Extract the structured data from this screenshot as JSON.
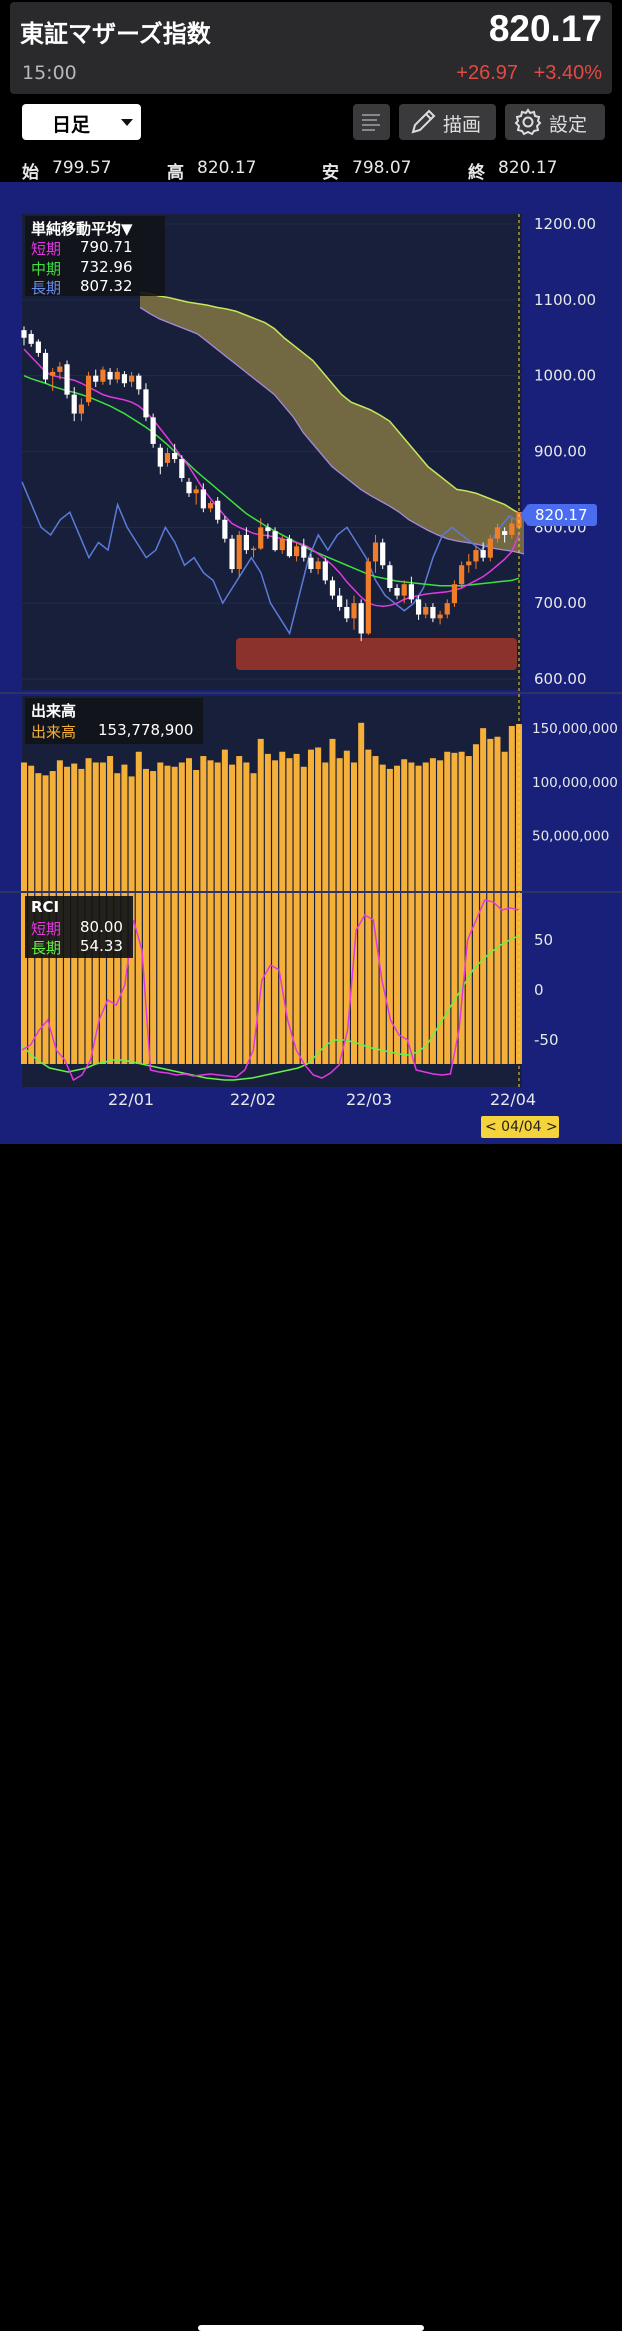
{
  "header": {
    "title": "東証マザーズ指数",
    "time": "15:00",
    "price": "820.17",
    "change": "+26.97",
    "change_pct": "+3.40%"
  },
  "toolbar": {
    "period": "日足",
    "draw_label": "描画",
    "settings_label": "設定"
  },
  "ohlc": {
    "open_label": "始",
    "open": "799.57",
    "high_label": "高",
    "high": "820.17",
    "low_label": "安",
    "low": "798.07",
    "close_label": "終",
    "close": "820.17"
  },
  "colors": {
    "up": "#f07d2a",
    "down": "#ffffff",
    "volume": "#f5b03a",
    "short_ma": "#e239e2",
    "mid_ma": "#3ee03e",
    "long_ma": "#5b7bd8",
    "cloud": "#8a7a45",
    "rci_short": "#e239e2",
    "rci_long": "#6af04a",
    "background": "#18207a",
    "accent": "#4a6df0"
  },
  "price_panel": {
    "legend_title": "単純移動平均▼",
    "short_label": "短期",
    "short_value": "790.71",
    "mid_label": "中期",
    "mid_value": "732.96",
    "long_label": "長期",
    "long_value": "807.32",
    "y_ticks": [
      "1200.00",
      "1100.00",
      "1000.00",
      "900.00",
      "800.00",
      "700.00",
      "600.00"
    ],
    "last_price_tag": "820.17"
  },
  "volume_panel": {
    "legend_title": "出来高",
    "label": "出来高",
    "value": "153,778,900",
    "y_ticks": [
      "150,000,000",
      "100,000,000",
      "50,000,000"
    ]
  },
  "rci_panel": {
    "legend_title": "RCI",
    "short_label": "短期",
    "short_value": "80.00",
    "long_label": "長期",
    "long_value": "54.33",
    "y_ticks": [
      "50",
      "0",
      "-50"
    ]
  },
  "x_axis": {
    "ticks": [
      "22/01",
      "22/02",
      "22/03",
      "22/04"
    ],
    "cursor_date": "< 04/04 >"
  },
  "chart_data": {
    "type": "candlestick",
    "price_ylim": [
      600,
      1200
    ],
    "ohlc": [
      [
        1060,
        1065,
        1040,
        1050
      ],
      [
        1055,
        1060,
        1038,
        1042
      ],
      [
        1045,
        1048,
        1025,
        1030
      ],
      [
        1030,
        1035,
        990,
        995
      ],
      [
        1000,
        1010,
        980,
        1005
      ],
      [
        1005,
        1018,
        995,
        1012
      ],
      [
        1015,
        1020,
        970,
        975
      ],
      [
        975,
        985,
        940,
        950
      ],
      [
        950,
        970,
        940,
        962
      ],
      [
        965,
        1005,
        960,
        1000
      ],
      [
        1000,
        1008,
        985,
        992
      ],
      [
        992,
        1012,
        988,
        1008
      ],
      [
        1005,
        1010,
        988,
        995
      ],
      [
        995,
        1010,
        990,
        1005
      ],
      [
        1002,
        1006,
        985,
        990
      ],
      [
        992,
        1005,
        985,
        1000
      ],
      [
        1000,
        1003,
        975,
        982
      ],
      [
        982,
        990,
        940,
        945
      ],
      [
        945,
        950,
        905,
        910
      ],
      [
        905,
        910,
        870,
        880
      ],
      [
        885,
        905,
        880,
        898
      ],
      [
        898,
        910,
        885,
        890
      ],
      [
        890,
        895,
        860,
        865
      ],
      [
        860,
        865,
        840,
        845
      ],
      [
        845,
        855,
        830,
        850
      ],
      [
        850,
        858,
        820,
        825
      ],
      [
        825,
        835,
        820,
        832
      ],
      [
        835,
        840,
        805,
        810
      ],
      [
        810,
        815,
        780,
        785
      ],
      [
        785,
        790,
        740,
        745
      ],
      [
        745,
        795,
        735,
        790
      ],
      [
        790,
        800,
        765,
        770
      ],
      [
        770,
        775,
        760,
        772
      ],
      [
        772,
        812,
        770,
        800
      ],
      [
        800,
        805,
        785,
        795
      ],
      [
        795,
        800,
        768,
        770
      ],
      [
        770,
        790,
        765,
        785
      ],
      [
        785,
        790,
        760,
        762
      ],
      [
        762,
        780,
        755,
        775
      ],
      [
        775,
        785,
        755,
        760
      ],
      [
        760,
        765,
        740,
        745
      ],
      [
        745,
        760,
        738,
        755
      ],
      [
        755,
        760,
        725,
        730
      ],
      [
        730,
        735,
        705,
        710
      ],
      [
        710,
        720,
        690,
        695
      ],
      [
        695,
        705,
        675,
        680
      ],
      [
        680,
        710,
        665,
        700
      ],
      [
        700,
        705,
        650,
        660
      ],
      [
        660,
        760,
        658,
        755
      ],
      [
        755,
        790,
        740,
        780
      ],
      [
        780,
        785,
        745,
        750
      ],
      [
        750,
        755,
        715,
        720
      ],
      [
        720,
        725,
        705,
        710
      ],
      [
        710,
        730,
        700,
        725
      ],
      [
        725,
        735,
        700,
        705
      ],
      [
        705,
        710,
        678,
        685
      ],
      [
        685,
        700,
        680,
        695
      ],
      [
        695,
        700,
        675,
        680
      ],
      [
        680,
        690,
        672,
        685
      ],
      [
        685,
        705,
        680,
        700
      ],
      [
        700,
        730,
        695,
        725
      ],
      [
        725,
        755,
        720,
        750
      ],
      [
        750,
        765,
        740,
        755
      ],
      [
        755,
        775,
        745,
        770
      ],
      [
        770,
        780,
        755,
        760
      ],
      [
        760,
        790,
        755,
        785
      ],
      [
        785,
        805,
        780,
        800
      ],
      [
        795,
        800,
        780,
        790
      ],
      [
        790,
        812,
        785,
        805
      ],
      [
        799.57,
        820.17,
        798.07,
        820.17
      ]
    ],
    "ma_short": [
      1035,
      1025,
      1015,
      1005,
      1000,
      998,
      996,
      994,
      990,
      985,
      980,
      975,
      972,
      970,
      968,
      965,
      960,
      952,
      942,
      930,
      918,
      905,
      892,
      880,
      865,
      850,
      838,
      826,
      815,
      805,
      800,
      796,
      792,
      790,
      789,
      787,
      785,
      782,
      780,
      777,
      772,
      765,
      758,
      750,
      740,
      728,
      718,
      708,
      700,
      697,
      696,
      697,
      700,
      705,
      708,
      710,
      712,
      713,
      714,
      715,
      717,
      720,
      725,
      730,
      735,
      742,
      750,
      758,
      768,
      790.71
    ],
    "ma_mid": [
      1000,
      996,
      993,
      990,
      986,
      983,
      980,
      978,
      975,
      972,
      968,
      964,
      960,
      955,
      950,
      944,
      938,
      932,
      925,
      917,
      909,
      900,
      892,
      883,
      874,
      866,
      858,
      850,
      842,
      834,
      826,
      818,
      812,
      806,
      800,
      795,
      790,
      785,
      780,
      775,
      770,
      766,
      762,
      758,
      754,
      750,
      746,
      742,
      738,
      735,
      733,
      731,
      729,
      728,
      727,
      726,
      725,
      724,
      723,
      723,
      723,
      723,
      724,
      725,
      726,
      727,
      728,
      729,
      730,
      732.96
    ],
    "ma_long": [
      860,
      830,
      800,
      790,
      810,
      820,
      790,
      760,
      780,
      770,
      830,
      800,
      780,
      760,
      770,
      800,
      780,
      750,
      760,
      740,
      730,
      700,
      720,
      740,
      760,
      740,
      700,
      680,
      660,
      710,
      760,
      790,
      770,
      790,
      800,
      780,
      760,
      730,
      710,
      700,
      690,
      700,
      720,
      760,
      790,
      800,
      790,
      780,
      770,
      780,
      800,
      815,
      807.32
    ],
    "cloud_upper": [
      1110,
      1108,
      1105,
      1103,
      1100,
      1097,
      1095,
      1093,
      1090,
      1088,
      1085,
      1080,
      1075,
      1070,
      1062,
      1050,
      1040,
      1030,
      1020,
      1005,
      990,
      975,
      965,
      960,
      955,
      948,
      940,
      925,
      910,
      895,
      880,
      870,
      860,
      850,
      848,
      845,
      840,
      835,
      830,
      822,
      815
    ],
    "cloud_lower": [
      1090,
      1082,
      1075,
      1070,
      1065,
      1060,
      1055,
      1045,
      1035,
      1025,
      1015,
      1005,
      995,
      985,
      975,
      960,
      945,
      925,
      910,
      895,
      880,
      870,
      860,
      850,
      842,
      835,
      828,
      820,
      810,
      803,
      796,
      790,
      785,
      782,
      780,
      778,
      775,
      772,
      770,
      768,
      765
    ],
    "volume": [
      118,
      115,
      108,
      106,
      110,
      120,
      114,
      117,
      112,
      122,
      118,
      118,
      124,
      108,
      116,
      105,
      128,
      112,
      110,
      118,
      115,
      114,
      118,
      122,
      111,
      124,
      120,
      118,
      130,
      116,
      124,
      118,
      108,
      140,
      126,
      120,
      128,
      122,
      126,
      114,
      130,
      132,
      118,
      140,
      122,
      129,
      118,
      155,
      130,
      124,
      116,
      112,
      115,
      121,
      118,
      115,
      118,
      122,
      120,
      128,
      127,
      128,
      124,
      135,
      150,
      140,
      142,
      128,
      152,
      153.8
    ],
    "volume_ylim": [
      0,
      180
    ],
    "rci_short": [
      -60,
      -55,
      -40,
      -30,
      -60,
      -70,
      -90,
      -85,
      -70,
      -30,
      -10,
      -15,
      5,
      70,
      40,
      -80,
      -82,
      -83,
      -85,
      -84,
      -86,
      -85,
      -84,
      -85,
      -86,
      -87,
      -80,
      -60,
      10,
      25,
      20,
      -30,
      -60,
      -75,
      -85,
      -88,
      -83,
      -75,
      -40,
      60,
      75,
      70,
      10,
      -30,
      -45,
      -50,
      -80,
      -82,
      -84,
      -85,
      -84,
      -40,
      50,
      70,
      90,
      88,
      80,
      82,
      80
    ],
    "rci_long": [
      -55,
      -65,
      -72,
      -78,
      -80,
      -82,
      -80,
      -78,
      -74,
      -72,
      -70,
      -70,
      -72,
      -74,
      -76,
      -78,
      -80,
      -82,
      -84,
      -86,
      -88,
      -89,
      -90,
      -90,
      -89,
      -88,
      -86,
      -84,
      -82,
      -80,
      -78,
      -74,
      -65,
      -55,
      -50,
      -50,
      -52,
      -55,
      -58,
      -60,
      -62,
      -64,
      -65,
      -62,
      -55,
      -40,
      -25,
      -10,
      5,
      20,
      30,
      38,
      45,
      50,
      54.33
    ],
    "rci_ylim": [
      -100,
      100
    ]
  }
}
